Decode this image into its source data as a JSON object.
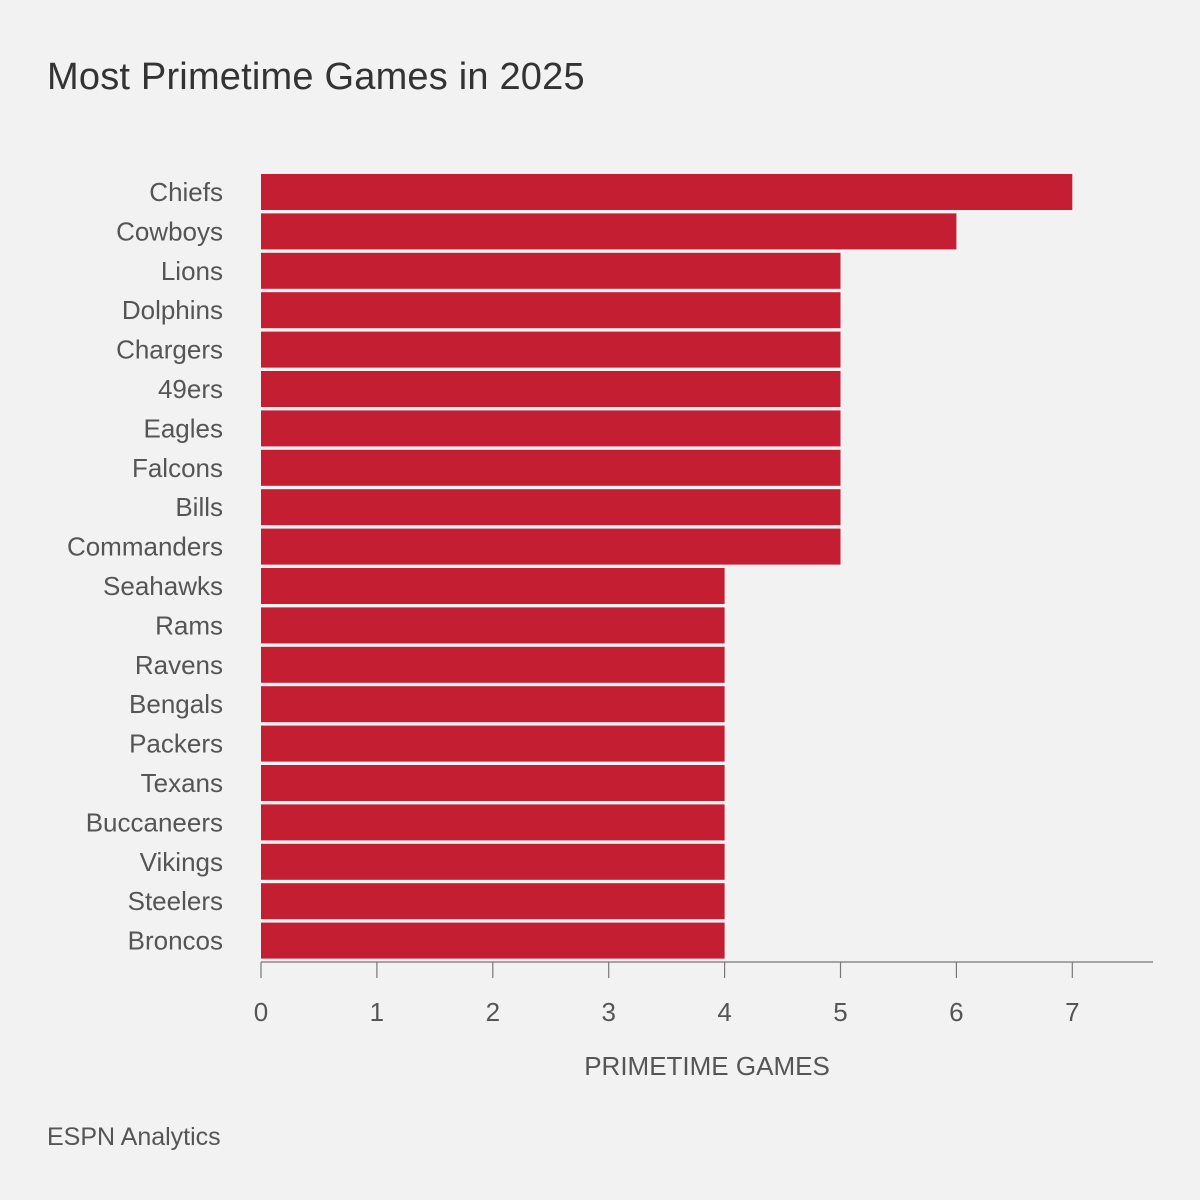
{
  "title": "Most Primetime Games in 2025",
  "source": "ESPN Analytics",
  "colors": {
    "bar": "#c31e32",
    "axis": "#777777",
    "text": "#555555",
    "background": "#f2f2f2"
  },
  "chart_data": {
    "type": "bar",
    "orientation": "horizontal",
    "title": "Most Primetime Games in 2025",
    "xlabel": "PRIMETIME GAMES",
    "ylabel": "",
    "xlim": [
      0,
      7.7
    ],
    "xticks": [
      0,
      1,
      2,
      3,
      4,
      5,
      6,
      7
    ],
    "grid": false,
    "categories": [
      "Chiefs",
      "Cowboys",
      "Lions",
      "Dolphins",
      "Chargers",
      "49ers",
      "Eagles",
      "Falcons",
      "Bills",
      "Commanders",
      "Seahawks",
      "Rams",
      "Ravens",
      "Bengals",
      "Packers",
      "Texans",
      "Buccaneers",
      "Vikings",
      "Steelers",
      "Broncos"
    ],
    "values": [
      7,
      6,
      5,
      5,
      5,
      5,
      5,
      5,
      5,
      5,
      4,
      4,
      4,
      4,
      4,
      4,
      4,
      4,
      4,
      4
    ]
  }
}
